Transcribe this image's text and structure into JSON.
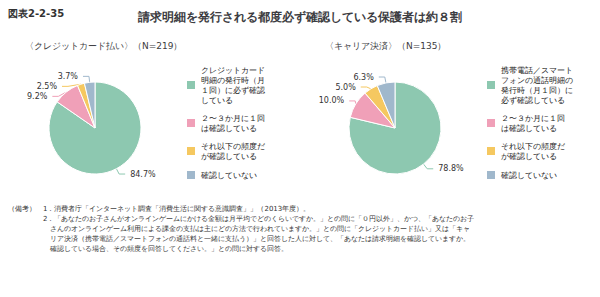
{
  "title": "請求明細を発行される都度必ず確認している保護者は約８割",
  "annotations": [
    "図表2-2-35",
    "（備考）　1．消費者庁「インターネット調査「消費生活に関する意識調査」」（2013年度）。",
    "　　　　　2．「あなたのお子さんがオンラインゲームにかける金額は月平均でどのくらいですか。」との問に「０円以外」、かつ、「あなたのお子",
    "　　　　　　さんのオンラインゲーム利用による課金の支払は主にどの方法で行われていますか。」との問に「クレジットカード払い」又は「キャ",
    "　　　　　　リア決済（携帯電話／スマートフォンの通話料と一緒に支払う）」と回答した人に対して、「あなたは請求明細を確認していますか。",
    "　　　　　　確認している場合、その頻度を回答してください。」との問に対する回答。"
  ],
  "chart_data": [
    {
      "type": "pie",
      "title": "〈クレジットカード払い〉（N=219）",
      "categories": [
        "クレジットカード\n明細の発行時（月\n１回）に必ず確認\nしている",
        "２〜３か月に１回\nは確認している",
        "それ以下の頻度だ\nが確認している",
        "確認していない"
      ],
      "values": [
        84.7,
        9.2,
        2.5,
        3.7
      ],
      "value_labels": [
        "84.7%",
        "9.2%",
        "2.5%",
        "3.7%"
      ],
      "colors": [
        "#8dc8b0",
        "#f0a0b8",
        "#f5c860",
        "#a0b8cc"
      ],
      "data_labels": true,
      "legend": "right"
    },
    {
      "type": "pie",
      "title": "〈キャリア決済〉（N=135）",
      "categories": [
        "携帯電話／スマート\nフォンの通話明細の\n発行時（月１回）に\n必ず確認している",
        "２〜３か月に１回\nは確認している",
        "それ以下の頻度だ\nが確認している",
        "確認していない"
      ],
      "values": [
        78.8,
        10.0,
        5.0,
        6.3
      ],
      "value_labels": [
        "78.8%",
        "10.0%",
        "5.0%",
        "6.3%"
      ],
      "colors": [
        "#8dc8b0",
        "#f0a0b8",
        "#f5c860",
        "#a0b8cc"
      ],
      "data_labels": true,
      "legend": "right"
    }
  ]
}
